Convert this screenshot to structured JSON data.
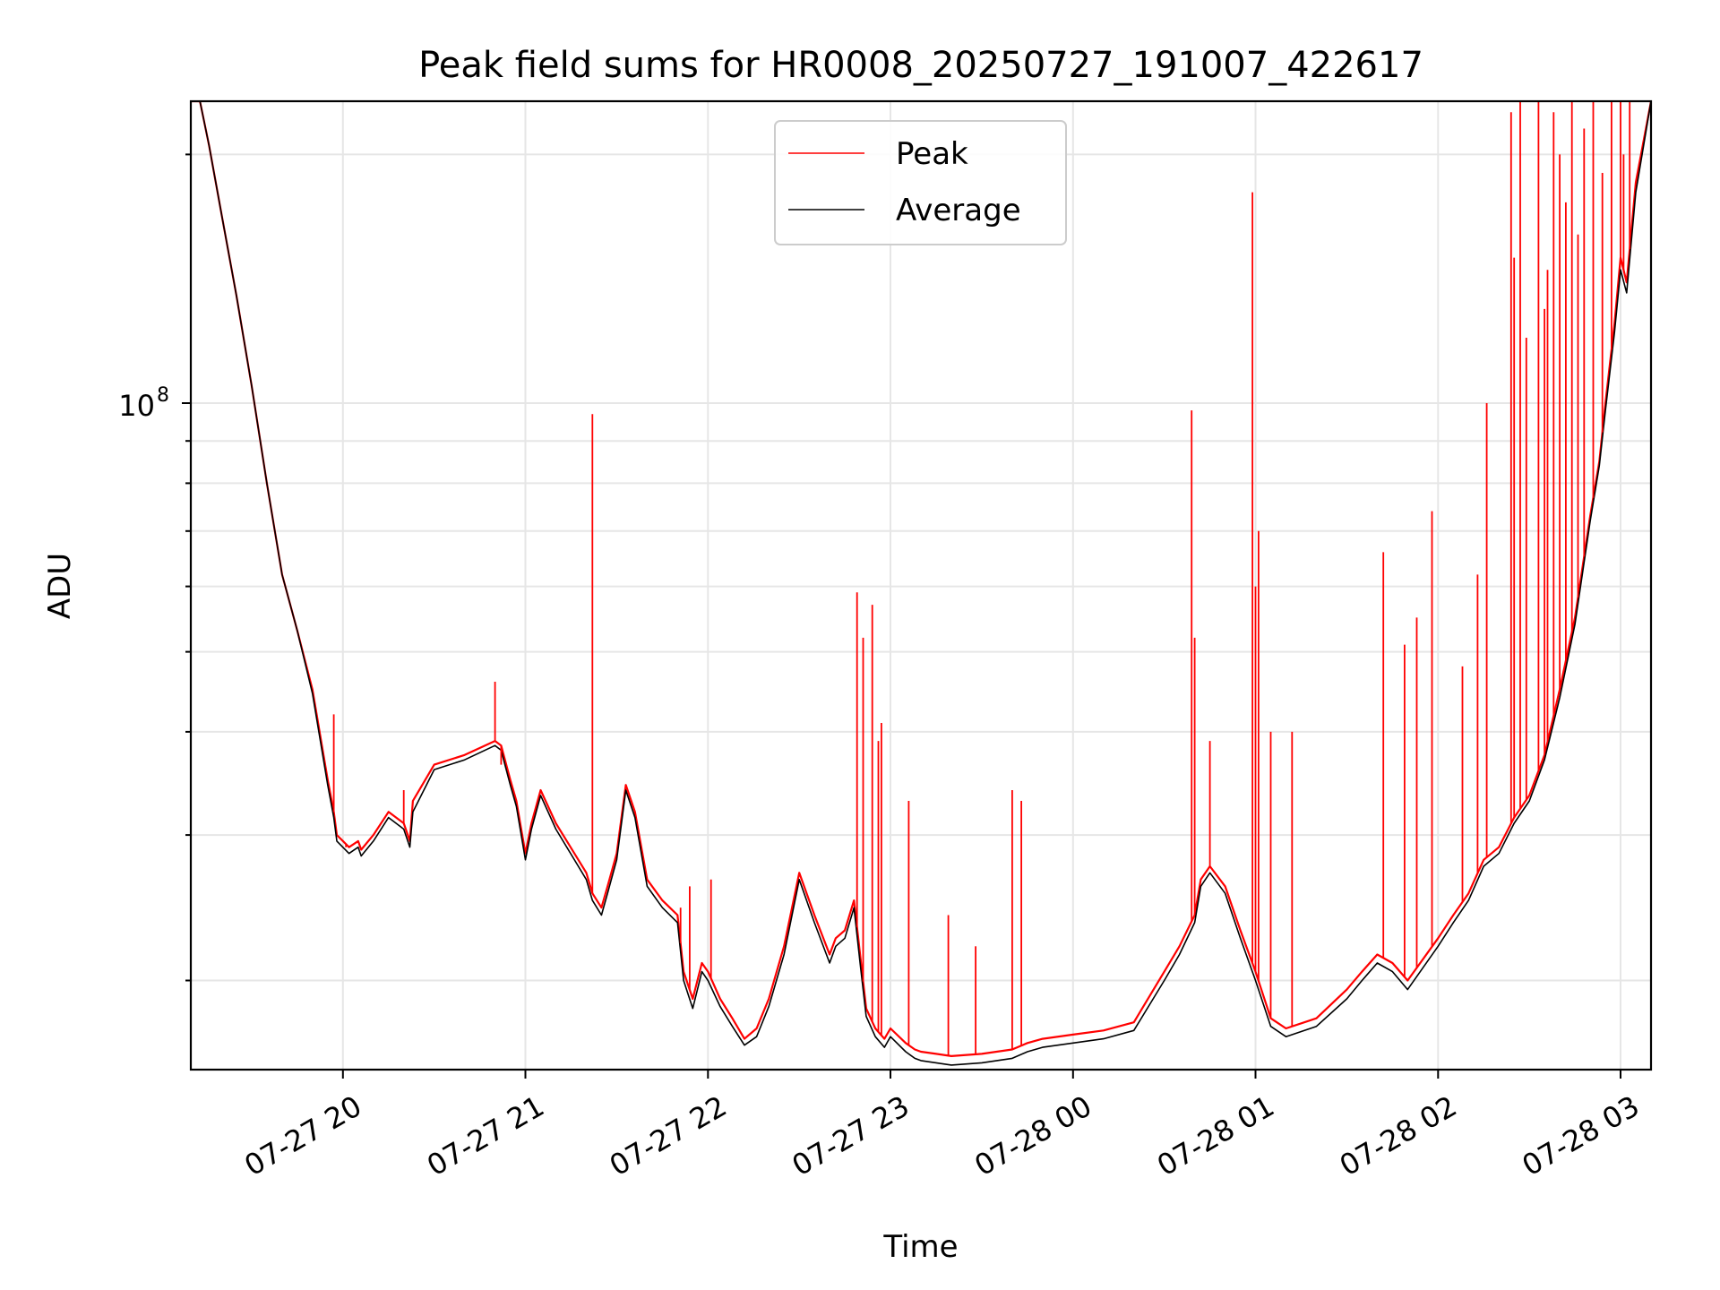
{
  "chart_data": {
    "type": "line",
    "title": "Peak field sums for HR0008_20250727_191007_422617",
    "xlabel": "Time",
    "ylabel": "ADU",
    "x_axis_type": "datetime",
    "y_scale": "log",
    "xlim": [
      "2025-07-27 19:10",
      "2025-07-28 03:10"
    ],
    "ylim": [
      15600000,
      232000000
    ],
    "x_ticks": [
      {
        "value": "2025-07-27 20:00",
        "label": "07-27 20"
      },
      {
        "value": "2025-07-27 21:00",
        "label": "07-27 21"
      },
      {
        "value": "2025-07-27 22:00",
        "label": "07-27 22"
      },
      {
        "value": "2025-07-27 23:00",
        "label": "07-27 23"
      },
      {
        "value": "2025-07-28 00:00",
        "label": "07-28 00"
      },
      {
        "value": "2025-07-28 01:00",
        "label": "07-28 01"
      },
      {
        "value": "2025-07-28 02:00",
        "label": "07-28 02"
      },
      {
        "value": "2025-07-28 03:00",
        "label": "07-28 03"
      }
    ],
    "y_major_ticks": [
      {
        "value": 100000000,
        "label_base": "10",
        "label_exp": "8"
      }
    ],
    "y_minor_ticks": [
      20000000,
      30000000,
      40000000,
      50000000,
      60000000,
      70000000,
      80000000,
      90000000,
      200000000
    ],
    "grid": true,
    "legend_position": "upper-center",
    "series": [
      {
        "name": "Peak",
        "color": "#ff0000",
        "x": [
          "2025-07-27 19:10",
          "2025-07-27 19:13",
          "2025-07-27 19:16",
          "2025-07-27 19:20",
          "2025-07-27 19:25",
          "2025-07-27 19:30",
          "2025-07-27 19:35",
          "2025-07-27 19:40",
          "2025-07-27 19:45",
          "2025-07-27 19:50",
          "2025-07-27 19:55",
          "2025-07-27 19:57",
          "2025-07-27 19:58",
          "2025-07-27 20:02",
          "2025-07-27 20:05",
          "2025-07-27 20:06",
          "2025-07-27 20:10",
          "2025-07-27 20:15",
          "2025-07-27 20:20",
          "2025-07-27 20:22",
          "2025-07-27 20:23",
          "2025-07-27 20:30",
          "2025-07-27 20:40",
          "2025-07-27 20:50",
          "2025-07-27 20:52",
          "2025-07-27 20:55",
          "2025-07-27 20:57",
          "2025-07-27 21:00",
          "2025-07-27 21:02",
          "2025-07-27 21:05",
          "2025-07-27 21:10",
          "2025-07-27 21:20",
          "2025-07-27 21:22",
          "2025-07-27 21:25",
          "2025-07-27 21:27",
          "2025-07-27 21:30",
          "2025-07-27 21:33",
          "2025-07-27 21:36",
          "2025-07-27 21:40",
          "2025-07-27 21:45",
          "2025-07-27 21:50",
          "2025-07-27 21:52",
          "2025-07-27 21:55",
          "2025-07-27 21:58",
          "2025-07-27 22:00",
          "2025-07-27 22:04",
          "2025-07-27 22:08",
          "2025-07-27 22:12",
          "2025-07-27 22:16",
          "2025-07-27 22:20",
          "2025-07-27 22:25",
          "2025-07-27 22:30",
          "2025-07-27 22:35",
          "2025-07-27 22:40",
          "2025-07-27 22:42",
          "2025-07-27 22:45",
          "2025-07-27 22:48",
          "2025-07-27 22:50",
          "2025-07-27 22:52",
          "2025-07-27 22:55",
          "2025-07-27 22:58",
          "2025-07-27 23:00",
          "2025-07-27 23:05",
          "2025-07-27 23:08",
          "2025-07-27 23:10",
          "2025-07-27 23:15",
          "2025-07-27 23:20",
          "2025-07-27 23:30",
          "2025-07-27 23:40",
          "2025-07-27 23:45",
          "2025-07-27 23:50",
          "2025-07-28 00:00",
          "2025-07-28 00:10",
          "2025-07-28 00:20",
          "2025-07-28 00:30",
          "2025-07-28 00:35",
          "2025-07-28 00:40",
          "2025-07-28 00:42",
          "2025-07-28 00:45",
          "2025-07-28 00:50",
          "2025-07-28 00:55",
          "2025-07-28 01:00",
          "2025-07-28 01:05",
          "2025-07-28 01:07",
          "2025-07-28 01:10",
          "2025-07-28 01:20",
          "2025-07-28 01:30",
          "2025-07-28 01:35",
          "2025-07-28 01:40",
          "2025-07-28 01:45",
          "2025-07-28 01:50",
          "2025-07-28 02:00",
          "2025-07-28 02:05",
          "2025-07-28 02:10",
          "2025-07-28 02:15",
          "2025-07-28 02:20",
          "2025-07-28 02:25",
          "2025-07-28 02:30",
          "2025-07-28 02:35",
          "2025-07-28 02:40",
          "2025-07-28 02:45",
          "2025-07-28 02:50",
          "2025-07-28 02:53",
          "2025-07-28 02:55",
          "2025-07-28 02:58",
          "2025-07-28 03:00",
          "2025-07-28 03:02",
          "2025-07-28 03:05",
          "2025-07-28 03:10"
        ],
        "y": [
          232000000,
          232000000,
          205000000,
          170000000,
          135000000,
          105000000,
          80000000,
          62000000,
          53000000,
          45000000,
          35000000,
          32000000,
          30000000,
          29000000,
          29500000,
          28800000,
          30000000,
          32000000,
          31000000,
          29500000,
          33000000,
          36500000,
          37500000,
          39000000,
          38500000,
          35000000,
          33000000,
          28500000,
          31000000,
          34000000,
          31000000,
          27000000,
          25500000,
          24500000,
          26000000,
          28500000,
          34500000,
          32000000,
          26500000,
          25000000,
          24000000,
          20500000,
          19000000,
          21000000,
          20500000,
          19000000,
          18000000,
          17000000,
          17500000,
          19000000,
          22000000,
          27000000,
          24000000,
          21500000,
          22500000,
          23000000,
          25000000,
          21500000,
          18500000,
          17500000,
          17000000,
          17500000,
          16800000,
          16500000,
          16400000,
          16300000,
          16200000,
          16300000,
          16500000,
          16800000,
          17000000,
          17200000,
          17400000,
          17800000,
          20500000,
          22000000,
          24000000,
          26500000,
          27500000,
          26000000,
          23000000,
          20500000,
          18000000,
          17800000,
          17500000,
          18000000,
          19500000,
          20500000,
          21500000,
          21000000,
          20000000,
          22500000,
          24000000,
          25500000,
          28000000,
          29000000,
          31500000,
          33500000,
          37500000,
          45000000,
          55000000,
          73000000,
          85000000,
          100000000,
          125000000,
          150000000,
          140000000,
          185000000,
          232000000
        ]
      },
      {
        "name": "Average",
        "color": "#000000",
        "x": [
          "2025-07-27 19:10",
          "2025-07-27 19:13",
          "2025-07-27 19:16",
          "2025-07-27 19:20",
          "2025-07-27 19:25",
          "2025-07-27 19:30",
          "2025-07-27 19:35",
          "2025-07-27 19:40",
          "2025-07-27 19:45",
          "2025-07-27 19:50",
          "2025-07-27 19:55",
          "2025-07-27 19:57",
          "2025-07-27 19:58",
          "2025-07-27 20:02",
          "2025-07-27 20:05",
          "2025-07-27 20:06",
          "2025-07-27 20:10",
          "2025-07-27 20:15",
          "2025-07-27 20:20",
          "2025-07-27 20:22",
          "2025-07-27 20:23",
          "2025-07-27 20:30",
          "2025-07-27 20:40",
          "2025-07-27 20:50",
          "2025-07-27 20:52",
          "2025-07-27 20:55",
          "2025-07-27 20:57",
          "2025-07-27 21:00",
          "2025-07-27 21:02",
          "2025-07-27 21:05",
          "2025-07-27 21:10",
          "2025-07-27 21:20",
          "2025-07-27 21:22",
          "2025-07-27 21:25",
          "2025-07-27 21:27",
          "2025-07-27 21:30",
          "2025-07-27 21:33",
          "2025-07-27 21:36",
          "2025-07-27 21:40",
          "2025-07-27 21:45",
          "2025-07-27 21:50",
          "2025-07-27 21:52",
          "2025-07-27 21:55",
          "2025-07-27 21:58",
          "2025-07-27 22:00",
          "2025-07-27 22:04",
          "2025-07-27 22:08",
          "2025-07-27 22:12",
          "2025-07-27 22:16",
          "2025-07-27 22:20",
          "2025-07-27 22:25",
          "2025-07-27 22:30",
          "2025-07-27 22:35",
          "2025-07-27 22:40",
          "2025-07-27 22:42",
          "2025-07-27 22:45",
          "2025-07-27 22:48",
          "2025-07-27 22:50",
          "2025-07-27 22:52",
          "2025-07-27 22:55",
          "2025-07-27 22:58",
          "2025-07-27 23:00",
          "2025-07-27 23:05",
          "2025-07-27 23:08",
          "2025-07-27 23:10",
          "2025-07-27 23:15",
          "2025-07-27 23:20",
          "2025-07-27 23:30",
          "2025-07-27 23:40",
          "2025-07-27 23:45",
          "2025-07-27 23:50",
          "2025-07-28 00:00",
          "2025-07-28 00:10",
          "2025-07-28 00:20",
          "2025-07-28 00:30",
          "2025-07-28 00:35",
          "2025-07-28 00:40",
          "2025-07-28 00:42",
          "2025-07-28 00:45",
          "2025-07-28 00:50",
          "2025-07-28 00:55",
          "2025-07-28 01:00",
          "2025-07-28 01:05",
          "2025-07-28 01:07",
          "2025-07-28 01:10",
          "2025-07-28 01:20",
          "2025-07-28 01:30",
          "2025-07-28 01:35",
          "2025-07-28 01:40",
          "2025-07-28 01:45",
          "2025-07-28 01:50",
          "2025-07-28 02:00",
          "2025-07-28 02:05",
          "2025-07-28 02:10",
          "2025-07-28 02:15",
          "2025-07-28 02:20",
          "2025-07-28 02:25",
          "2025-07-28 02:30",
          "2025-07-28 02:35",
          "2025-07-28 02:40",
          "2025-07-28 02:45",
          "2025-07-28 02:50",
          "2025-07-28 02:53",
          "2025-07-28 02:55",
          "2025-07-28 02:58",
          "2025-07-28 03:00",
          "2025-07-28 03:02",
          "2025-07-28 03:05",
          "2025-07-28 03:10"
        ],
        "y": [
          232000000,
          232000000,
          205000000,
          170000000,
          135000000,
          105000000,
          80000000,
          62000000,
          53000000,
          44500000,
          34500000,
          31500000,
          29500000,
          28500000,
          29000000,
          28300000,
          29500000,
          31500000,
          30500000,
          29000000,
          32000000,
          36000000,
          37000000,
          38500000,
          38000000,
          34500000,
          32500000,
          28000000,
          30500000,
          33500000,
          30500000,
          26500000,
          25000000,
          24000000,
          25500000,
          28000000,
          34000000,
          31500000,
          26000000,
          24500000,
          23500000,
          20000000,
          18500000,
          20500000,
          20000000,
          18600000,
          17600000,
          16700000,
          17100000,
          18600000,
          21500000,
          26500000,
          23500000,
          21000000,
          22000000,
          22500000,
          24500000,
          21000000,
          18100000,
          17100000,
          16600000,
          17100000,
          16400000,
          16100000,
          16000000,
          15900000,
          15800000,
          15900000,
          16100000,
          16400000,
          16600000,
          16800000,
          17000000,
          17400000,
          20000000,
          21500000,
          23500000,
          26000000,
          27000000,
          25500000,
          22500000,
          20000000,
          17600000,
          17400000,
          17100000,
          17600000,
          19000000,
          20000000,
          21000000,
          20500000,
          19500000,
          22000000,
          23500000,
          25000000,
          27500000,
          28500000,
          31000000,
          33000000,
          37000000,
          44000000,
          54000000,
          72000000,
          84000000,
          98000000,
          122000000,
          145000000,
          136000000,
          180000000,
          232000000
        ]
      }
    ],
    "spikes": {
      "series": "Peak",
      "x": [
        "2025-07-27 19:57",
        "2025-07-27 20:01",
        "2025-07-27 20:20",
        "2025-07-27 20:50",
        "2025-07-27 20:52",
        "2025-07-27 21:22",
        "2025-07-27 21:51",
        "2025-07-27 21:54",
        "2025-07-27 22:01",
        "2025-07-27 22:49",
        "2025-07-27 22:51",
        "2025-07-27 22:54",
        "2025-07-27 22:56",
        "2025-07-27 22:57",
        "2025-07-27 23:06",
        "2025-07-27 23:19",
        "2025-07-27 23:28",
        "2025-07-27 23:40",
        "2025-07-27 23:43",
        "2025-07-28 00:39",
        "2025-07-28 00:40",
        "2025-07-28 00:45",
        "2025-07-28 00:59",
        "2025-07-28 01:00",
        "2025-07-28 01:01",
        "2025-07-28 01:05",
        "2025-07-28 01:12",
        "2025-07-28 01:42",
        "2025-07-28 01:49",
        "2025-07-28 01:53",
        "2025-07-28 01:58",
        "2025-07-28 02:08",
        "2025-07-28 02:13",
        "2025-07-28 02:16",
        "2025-07-28 02:24",
        "2025-07-28 02:25",
        "2025-07-28 02:27",
        "2025-07-28 02:29",
        "2025-07-28 02:33",
        "2025-07-28 02:35",
        "2025-07-28 02:36",
        "2025-07-28 02:38",
        "2025-07-28 02:40",
        "2025-07-28 02:42",
        "2025-07-28 02:44",
        "2025-07-28 02:46",
        "2025-07-28 02:48",
        "2025-07-28 02:51",
        "2025-07-28 02:54",
        "2025-07-28 02:57",
        "2025-07-28 03:00",
        "2025-07-28 03:01",
        "2025-07-28 03:03"
      ],
      "y": [
        42000000,
        29000000,
        34000000,
        46000000,
        36500000,
        97000000,
        24500000,
        26000000,
        26500000,
        59000000,
        52000000,
        57000000,
        39000000,
        41000000,
        33000000,
        24000000,
        22000000,
        34000000,
        33000000,
        98000000,
        52000000,
        39000000,
        180000000,
        60000000,
        70000000,
        40000000,
        40000000,
        66000000,
        51000000,
        55000000,
        74000000,
        48000000,
        62000000,
        100000000,
        225000000,
        150000000,
        232000000,
        120000000,
        232000000,
        130000000,
        145000000,
        225000000,
        200000000,
        175000000,
        232000000,
        160000000,
        215000000,
        232000000,
        190000000,
        232000000,
        232000000,
        200000000,
        232000000
      ]
    }
  }
}
